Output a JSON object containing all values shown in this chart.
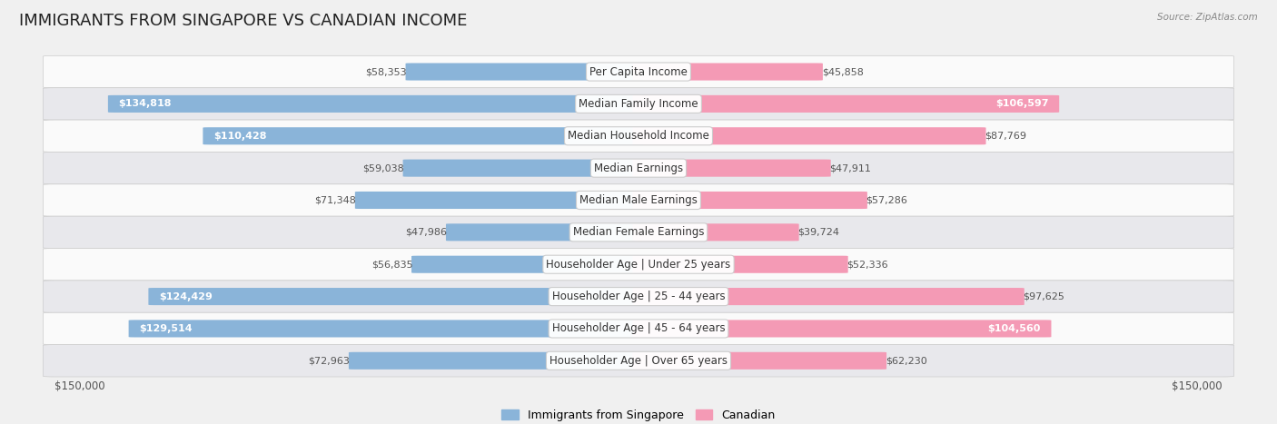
{
  "title": "IMMIGRANTS FROM SINGAPORE VS CANADIAN INCOME",
  "source": "Source: ZipAtlas.com",
  "categories": [
    "Per Capita Income",
    "Median Family Income",
    "Median Household Income",
    "Median Earnings",
    "Median Male Earnings",
    "Median Female Earnings",
    "Householder Age | Under 25 years",
    "Householder Age | 25 - 44 years",
    "Householder Age | 45 - 64 years",
    "Householder Age | Over 65 years"
  ],
  "singapore_values": [
    58353,
    134818,
    110428,
    59038,
    71348,
    47986,
    56835,
    124429,
    129514,
    72963
  ],
  "canadian_values": [
    45858,
    106597,
    87769,
    47911,
    57286,
    39724,
    52336,
    97625,
    104560,
    62230
  ],
  "singapore_color": "#8ab4d9",
  "canadian_color": "#f49ab5",
  "singapore_color_dark": "#5b8fc9",
  "canadian_color_dark": "#e8609a",
  "max_value": 150000,
  "bar_height": 0.52,
  "background_color": "#f0f0f0",
  "row_bg_light": "#fafafa",
  "row_bg_dark": "#e8e8ec",
  "title_fontsize": 13,
  "label_fontsize": 8.5,
  "value_fontsize": 8,
  "legend_fontsize": 9,
  "xlabel_left": "$150,000",
  "xlabel_right": "$150,000"
}
